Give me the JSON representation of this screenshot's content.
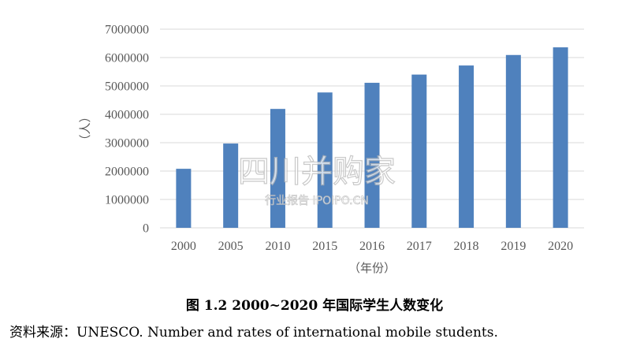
{
  "chart_data": {
    "type": "bar",
    "categories": [
      "2000",
      "2005",
      "2010",
      "2015",
      "2016",
      "2017",
      "2018",
      "2019",
      "2020"
    ],
    "values": [
      2080000,
      2970000,
      4190000,
      4770000,
      5110000,
      5400000,
      5720000,
      6090000,
      6360000
    ],
    "ylim": [
      0,
      7000000
    ],
    "yticks": [
      "0",
      "1000000",
      "2000000",
      "3000000",
      "4000000",
      "5000000",
      "6000000",
      "7000000"
    ],
    "ylabel": "（人）",
    "xlabel": "（年份）",
    "grid": true,
    "bar_color": "#4f81bd",
    "grid_color": "#d9d9d9"
  },
  "watermark": {
    "main": "四川并购家",
    "sub": "行业报告 IPOIPO.CN"
  },
  "caption": "图 1.2  2000~2020 年国际学生人数变化",
  "source": "资料来源：UNESCO. Number and rates of international mobile students."
}
